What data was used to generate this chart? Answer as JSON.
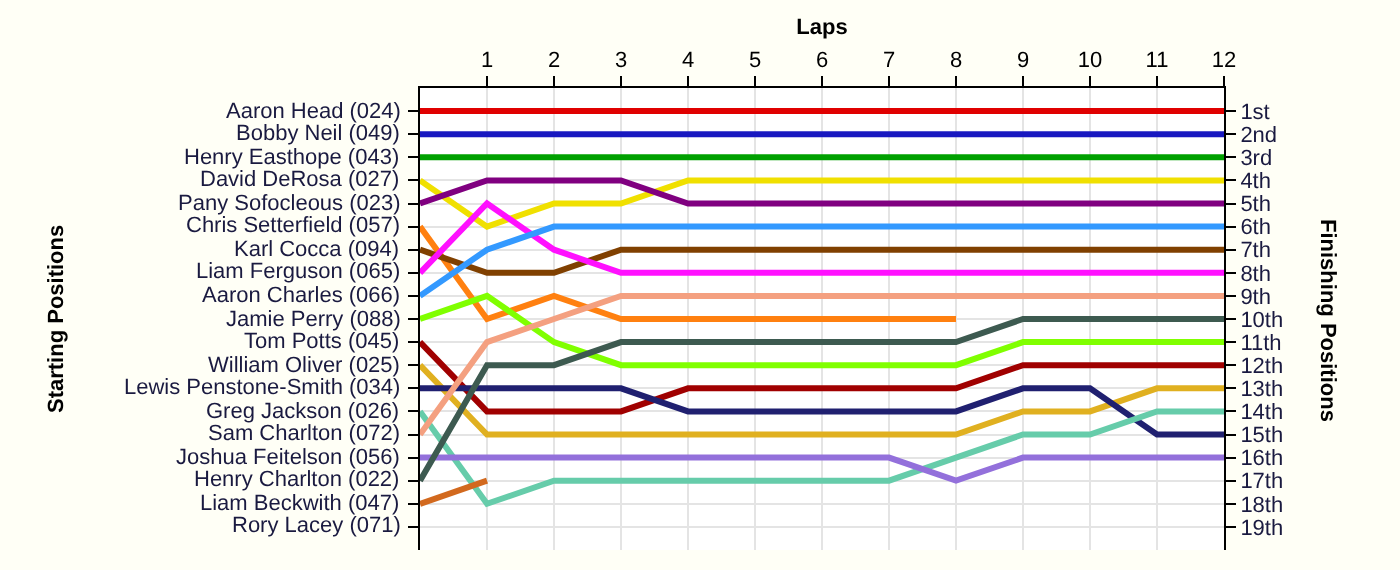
{
  "chart_data": {
    "type": "line",
    "xlabel": "Laps",
    "ylabel": "Finishing Positions",
    "annotations": [
      "Starting Positions",
      "Rory Lacey (071)"
    ],
    "grid": true,
    "legend": false,
    "marker": "none",
    "line_style": "solid",
    "x": [
      0,
      1,
      2,
      3,
      4,
      5,
      6,
      7,
      8,
      9,
      10,
      11,
      12
    ],
    "xlim": [
      0,
      12
    ],
    "xticks": [
      1,
      2,
      3,
      4,
      5,
      6,
      7,
      8,
      9,
      10,
      11,
      12
    ],
    "ylim": [
      20,
      0
    ],
    "yticks": [
      {
        "value": 1,
        "label": "1st"
      },
      {
        "value": 2,
        "label": "2nd"
      },
      {
        "value": 3,
        "label": "3rd"
      },
      {
        "value": 4,
        "label": "4th"
      },
      {
        "value": 5,
        "label": "5th"
      },
      {
        "value": 6,
        "label": "6th"
      },
      {
        "value": 7,
        "label": "7th"
      },
      {
        "value": 8,
        "label": "8th"
      },
      {
        "value": 9,
        "label": "9th"
      },
      {
        "value": 10,
        "label": "10th"
      },
      {
        "value": 11,
        "label": "11th"
      },
      {
        "value": 12,
        "label": "12th"
      },
      {
        "value": 13,
        "label": "13th"
      },
      {
        "value": 14,
        "label": "14th"
      },
      {
        "value": 15,
        "label": "15th"
      },
      {
        "value": 16,
        "label": "16th"
      },
      {
        "value": 17,
        "label": "17th"
      },
      {
        "value": 18,
        "label": "18th"
      },
      {
        "value": 19,
        "label": "19th"
      }
    ],
    "series": [
      {
        "name": "Aaron Head (024)",
        "color": "#e00000",
        "values": [
          1,
          1,
          1,
          1,
          1,
          1,
          1,
          1,
          1,
          1,
          1,
          1,
          1
        ]
      },
      {
        "name": "Bobby Neil (049)",
        "color": "#1818c0",
        "values": [
          2,
          2,
          2,
          2,
          2,
          2,
          2,
          2,
          2,
          2,
          2,
          2,
          2
        ]
      },
      {
        "name": "Henry Easthope (043)",
        "color": "#00a000",
        "values": [
          3,
          3,
          3,
          3,
          3,
          3,
          3,
          3,
          3,
          3,
          3,
          3,
          3
        ]
      },
      {
        "name": "David DeRosa (027)",
        "color": "#f0e000",
        "values": [
          4,
          6,
          5,
          5,
          4,
          4,
          4,
          4,
          4,
          4,
          4,
          4,
          4
        ]
      },
      {
        "name": "Pany Sofocleous (023)",
        "color": "#800080",
        "values": [
          5,
          4,
          4,
          4,
          5,
          5,
          5,
          5,
          5,
          5,
          5,
          5,
          5
        ]
      },
      {
        "name": "Chris Setterfield (057)",
        "color": "#ff8010",
        "values": [
          6,
          10,
          9,
          10,
          10,
          10,
          10,
          10,
          10,
          null,
          null,
          null,
          null
        ]
      },
      {
        "name": "Karl Cocca (094)",
        "color": "#804000",
        "values": [
          7,
          8,
          8,
          7,
          7,
          7,
          7,
          7,
          7,
          7,
          7,
          7,
          7
        ]
      },
      {
        "name": "Liam Ferguson (065)",
        "color": "#ff10ff",
        "values": [
          8,
          5,
          7,
          8,
          8,
          8,
          8,
          8,
          8,
          8,
          8,
          8,
          8
        ]
      },
      {
        "name": "Aaron Charles (066)",
        "color": "#3399ff",
        "values": [
          9,
          7,
          6,
          6,
          6,
          6,
          6,
          6,
          6,
          6,
          6,
          6,
          6
        ]
      },
      {
        "name": "Jamie Perry (088)",
        "color": "#80ff00",
        "values": [
          10,
          9,
          11,
          12,
          12,
          12,
          12,
          12,
          12,
          11,
          11,
          11,
          11
        ]
      },
      {
        "name": "Tom Potts (045)",
        "color": "#a00000",
        "values": [
          11,
          14,
          14,
          14,
          13,
          13,
          13,
          13,
          13,
          12,
          12,
          12,
          12
        ]
      },
      {
        "name": "William Oliver (025)",
        "color": "#e0b020",
        "values": [
          12,
          15,
          15,
          15,
          15,
          15,
          15,
          15,
          15,
          14,
          14,
          13,
          13
        ]
      },
      {
        "name": "Lewis Penstone-Smith (034)",
        "color": "#202070",
        "values": [
          13,
          13,
          13,
          13,
          14,
          14,
          14,
          14,
          14,
          13,
          13,
          15,
          15
        ]
      },
      {
        "name": "Greg Jackson (026)",
        "color": "#66ccaa",
        "values": [
          14,
          18,
          17,
          17,
          17,
          17,
          17,
          17,
          16,
          15,
          15,
          14,
          14
        ]
      },
      {
        "name": "Sam Charlton (072)",
        "color": "#f4a080",
        "values": [
          15,
          11,
          10,
          9,
          9,
          9,
          9,
          9,
          9,
          9,
          9,
          9,
          9
        ]
      },
      {
        "name": "Joshua Feitelson (056)",
        "color": "#9370db",
        "values": [
          16,
          16,
          16,
          16,
          16,
          16,
          16,
          16,
          17,
          16,
          16,
          16,
          16
        ]
      },
      {
        "name": "Henry Charlton (022)",
        "color": "#3d5a50",
        "values": [
          17,
          12,
          12,
          11,
          11,
          11,
          11,
          11,
          11,
          10,
          10,
          10,
          10
        ]
      },
      {
        "name": "Liam Beckwith (047)",
        "color": "#d2691e",
        "values": [
          18,
          17,
          null,
          null,
          null,
          null,
          null,
          null,
          null,
          null,
          null,
          null,
          null
        ]
      }
    ]
  }
}
